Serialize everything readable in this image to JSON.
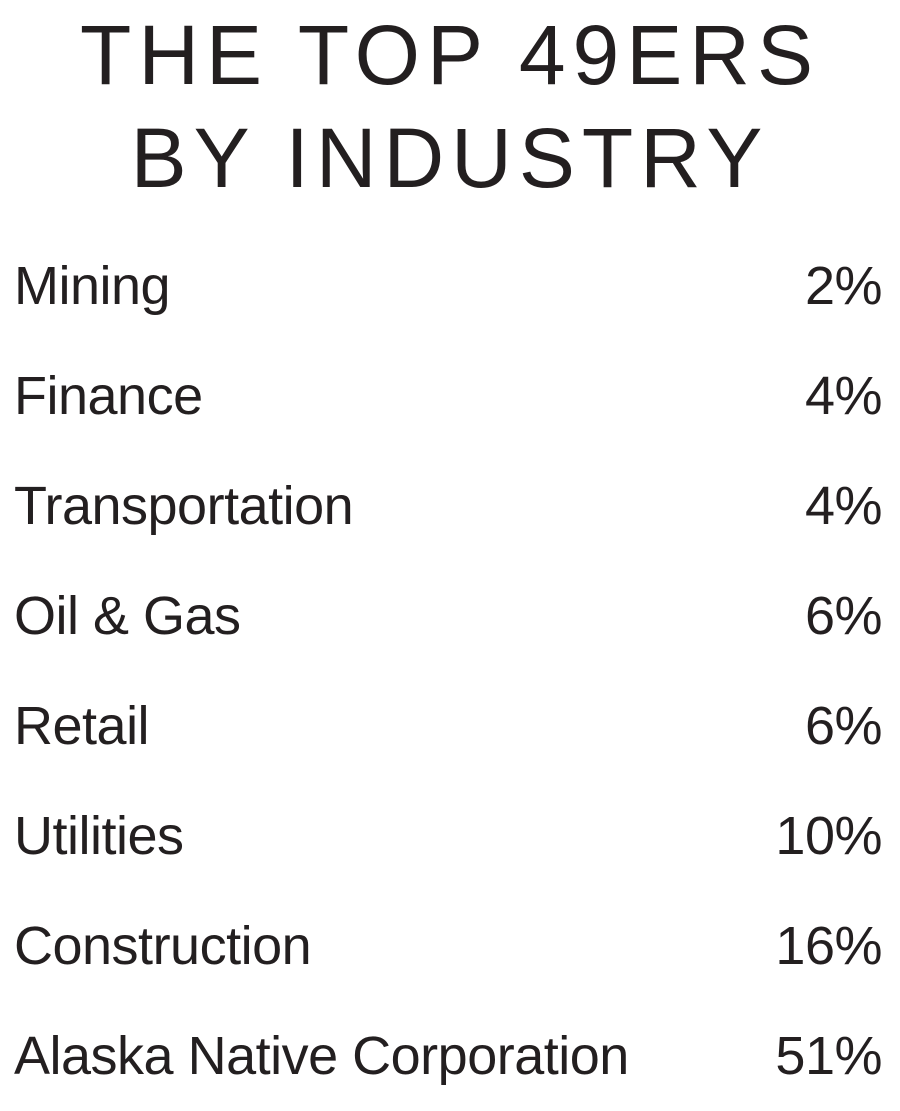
{
  "title": {
    "line1": "THE TOP 49ERS",
    "line2": "BY INDUSTRY"
  },
  "colors": {
    "text": "#231f20",
    "background": "#ffffff"
  },
  "chart_data": {
    "type": "table",
    "title": "THE TOP 49ERS BY INDUSTRY",
    "categories": [
      "Mining",
      "Finance",
      "Transportation",
      "Oil & Gas",
      "Retail",
      "Utilities",
      "Construction",
      "Alaska Native Corporation"
    ],
    "values": [
      2,
      4,
      4,
      6,
      6,
      10,
      16,
      51
    ],
    "value_unit": "percent",
    "legend_position": "none",
    "grid": false,
    "rows": [
      {
        "label": "Mining",
        "value": "2%"
      },
      {
        "label": "Finance",
        "value": "4%"
      },
      {
        "label": "Transportation",
        "value": "4%"
      },
      {
        "label": "Oil & Gas",
        "value": "6%"
      },
      {
        "label": "Retail",
        "value": "6%"
      },
      {
        "label": "Utilities",
        "value": "10%"
      },
      {
        "label": "Construction",
        "value": "16%"
      },
      {
        "label": "Alaska Native Corporation",
        "value": "51%"
      }
    ]
  }
}
